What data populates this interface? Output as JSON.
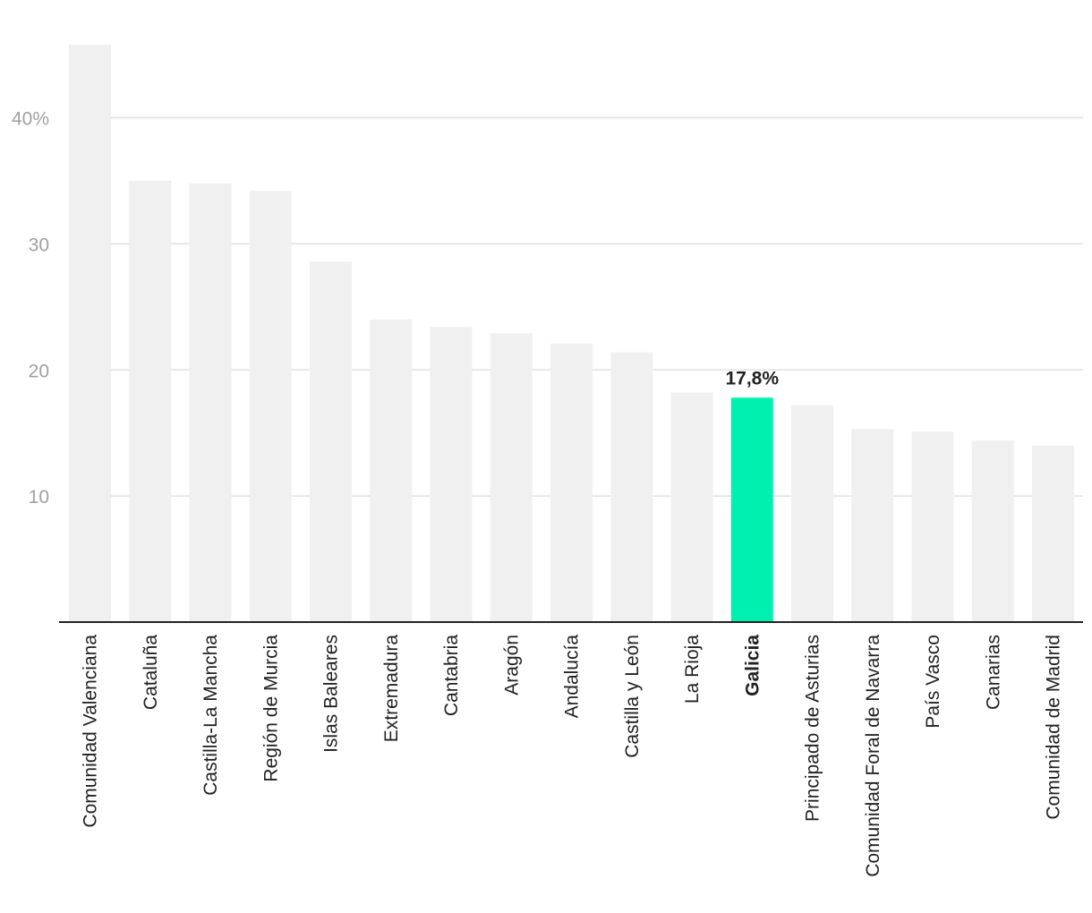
{
  "chart_data": {
    "type": "bar",
    "categories": [
      "Comunidad Valenciana",
      "Cataluña",
      "Castilla-La Mancha",
      "Región de Murcia",
      "Islas Baleares",
      "Extremadura",
      "Cantabria",
      "Aragón",
      "Andalucía",
      "Castilla y León",
      "La Rioja",
      "Galicia",
      "Principado de Asturias",
      "Comunidad Foral de Navarra",
      "País Vasco",
      "Canarias",
      "Comunidad de Madrid"
    ],
    "values": [
      45.8,
      35.0,
      34.8,
      34.2,
      28.6,
      24.0,
      23.4,
      22.9,
      22.1,
      21.4,
      18.2,
      17.8,
      17.2,
      15.3,
      15.1,
      14.4,
      14.0
    ],
    "ylim": [
      0,
      46
    ],
    "yticks": [
      10,
      20,
      30,
      40
    ],
    "ytick_labels": [
      "10",
      "20",
      "30",
      "40%"
    ],
    "grid": true,
    "highlight": {
      "category": "Galicia",
      "label": "17,8%"
    },
    "colors": {
      "bar": "#f0f0f0",
      "highlight": "#00f0b0"
    }
  }
}
